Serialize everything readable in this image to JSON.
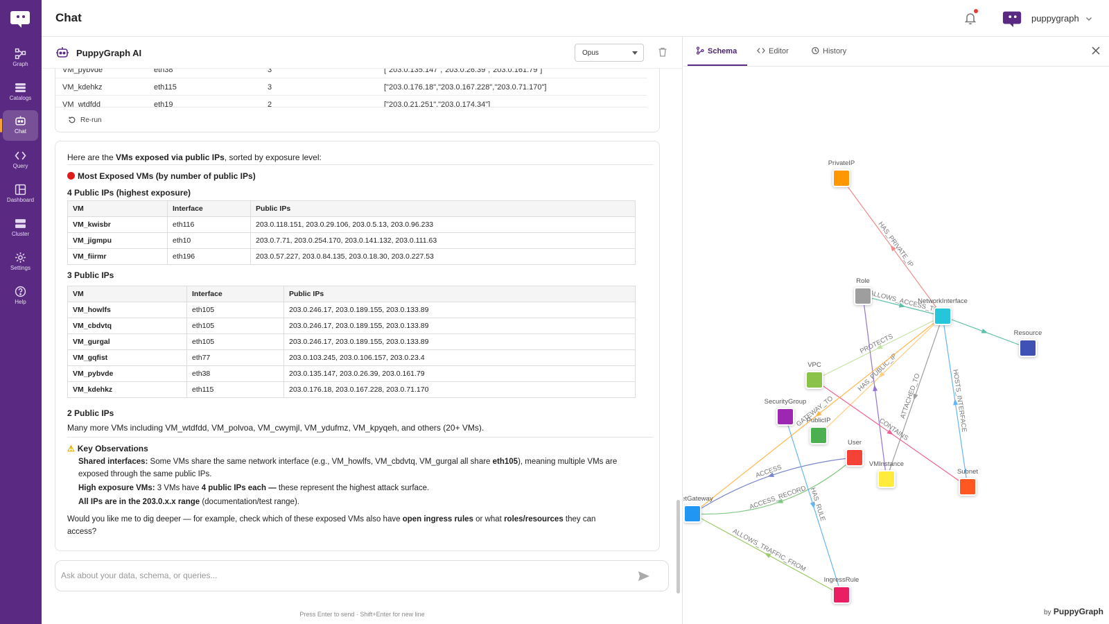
{
  "page_title": "Chat",
  "user": {
    "name": "puppygraph"
  },
  "nav": [
    {
      "label": "Graph",
      "icon": "graph-icon"
    },
    {
      "label": "Catalogs",
      "icon": "catalogs-icon"
    },
    {
      "label": "Chat",
      "icon": "chat-icon"
    },
    {
      "label": "Query",
      "icon": "query-icon"
    },
    {
      "label": "Dashboard",
      "icon": "dashboard-icon"
    },
    {
      "label": "Cluster",
      "icon": "cluster-icon"
    },
    {
      "label": "Settings",
      "icon": "settings-icon"
    },
    {
      "label": "Help",
      "icon": "help-icon"
    }
  ],
  "chat": {
    "title": "PuppyGraph AI",
    "model": "Opus",
    "previous_rows": [
      {
        "vm": "VM_pybvde",
        "iface": "eth38",
        "count": "3",
        "ips": "[\"203.0.135.147\",\"203.0.26.39\",\"203.0.161.79\"]"
      },
      {
        "vm": "VM_kdehkz",
        "iface": "eth115",
        "count": "3",
        "ips": "[\"203.0.176.18\",\"203.0.167.228\",\"203.0.71.170\"]"
      },
      {
        "vm": "VM_wtdfdd",
        "iface": "eth19",
        "count": "2",
        "ips": "[\"203.0.21.251\",\"203.0.174.34\"]"
      }
    ],
    "rerun_label": "Re-run",
    "intro_prefix": "Here are the ",
    "intro_bold": "VMs exposed via public IPs",
    "intro_suffix": ", sorted by exposure level:",
    "most_exposed_heading": "Most Exposed VMs (by number of public IPs)",
    "group4_heading": "4 Public IPs (highest exposure)",
    "table_headers": [
      "VM",
      "Interface",
      "Public IPs"
    ],
    "group4_rows": [
      {
        "vm": "VM_kwisbr",
        "iface": "eth116",
        "ips": "203.0.118.151, 203.0.29.106, 203.0.5.13, 203.0.96.233"
      },
      {
        "vm": "VM_jigmpu",
        "iface": "eth10",
        "ips": "203.0.7.71, 203.0.254.170, 203.0.141.132, 203.0.111.63"
      },
      {
        "vm": "VM_fiirmr",
        "iface": "eth196",
        "ips": "203.0.57.227, 203.0.84.135, 203.0.18.30, 203.0.227.53"
      }
    ],
    "group3_heading": "3 Public IPs",
    "group3_rows": [
      {
        "vm": "VM_howlfs",
        "iface": "eth105",
        "ips": "203.0.246.17, 203.0.189.155, 203.0.133.89"
      },
      {
        "vm": "VM_cbdvtq",
        "iface": "eth105",
        "ips": "203.0.246.17, 203.0.189.155, 203.0.133.89"
      },
      {
        "vm": "VM_gurgal",
        "iface": "eth105",
        "ips": "203.0.246.17, 203.0.189.155, 203.0.133.89"
      },
      {
        "vm": "VM_gqfist",
        "iface": "eth77",
        "ips": "203.0.103.245, 203.0.106.157, 203.0.23.4"
      },
      {
        "vm": "VM_pybvde",
        "iface": "eth38",
        "ips": "203.0.135.147, 203.0.26.39, 203.0.161.79"
      },
      {
        "vm": "VM_kdehkz",
        "iface": "eth115",
        "ips": "203.0.176.18, 203.0.167.228, 203.0.71.170"
      }
    ],
    "group2_heading": "2 Public IPs",
    "group2_text": "Many more VMs including VM_wtdfdd, VM_polvoa, VM_cwymjl, VM_ydufmz, VM_kpyqeh, and others (20+ VMs).",
    "observations_heading": "Key Observations",
    "obs1_bold": "Shared interfaces:",
    "obs1_text_a": " Some VMs share the same network interface (e.g., VM_howlfs, VM_cbdvtq, VM_gurgal all share ",
    "obs1_bold2": "eth105",
    "obs1_text_b": "), meaning multiple VMs are exposed through the same public IPs.",
    "obs2_bold": "High exposure VMs:",
    "obs2_text_a": " 3 VMs have ",
    "obs2_bold2": "4 public IPs each —",
    "obs2_text_b": " these represent the highest attack surface.",
    "obs3_bold": "All IPs are in the 203.0.x.x range",
    "obs3_text": " (documentation/test range).",
    "ask_a": "Would you like me to dig deeper — for example, check which of these exposed VMs also have ",
    "ask_bold1": "open ingress rules",
    "ask_b": " or what ",
    "ask_bold2": "roles/resources",
    "ask_c": " they can access?",
    "input_placeholder": "Ask about your data, schema, or queries...",
    "hint": "Press Enter to send · Shift+Enter for new line"
  },
  "schema": {
    "tabs": [
      "Schema",
      "Editor",
      "History"
    ],
    "brand_by": "by",
    "brand_name": "PuppyGraph",
    "nodes": [
      {
        "id": "PrivateIP",
        "label": "PrivateIP",
        "color": "#ff9800"
      },
      {
        "id": "Role",
        "label": "Role",
        "color": "#9e9e9e"
      },
      {
        "id": "NetworkInterface",
        "label": "NetworkInterface",
        "color": "#26c6da"
      },
      {
        "id": "Resource",
        "label": "Resource",
        "color": "#3f51b5"
      },
      {
        "id": "VPC",
        "label": "VPC",
        "color": "#8bc34a"
      },
      {
        "id": "SecurityGroup",
        "label": "SecurityGroup",
        "color": "#9c27b0"
      },
      {
        "id": "PublicIP",
        "label": "PublicIP",
        "color": "#4caf50"
      },
      {
        "id": "User",
        "label": "User",
        "color": "#f44336"
      },
      {
        "id": "VMInstance",
        "label": "VMInstance",
        "color": "#ffeb3b"
      },
      {
        "id": "Subnet",
        "label": "Subnet",
        "color": "#ff5722"
      },
      {
        "id": "InternetGateway",
        "label": "ernetGateway",
        "color": "#2196f3"
      },
      {
        "id": "IngressRule",
        "label": "IngressRule",
        "color": "#e91e63"
      }
    ],
    "edges": [
      {
        "from": "NetworkInterface",
        "to": "PrivateIP",
        "label": "HAS_PRIVATE_IP",
        "color": "#f28b8b"
      },
      {
        "from": "Role",
        "to": "NetworkInterface",
        "label": "ALLOWS_ACCESS_TO",
        "color": "#5cbfa8"
      },
      {
        "from": "NetworkInterface",
        "to": "Resource",
        "label": "",
        "color": "#5cbfa8"
      },
      {
        "from": "NetworkInterface",
        "to": "VPC",
        "label": "PROTECTS",
        "color": "#c5e1a5"
      },
      {
        "from": "NetworkInterface",
        "to": "PublicIP",
        "label": "HAS_PUBLIC_IP",
        "color": "#ffcc80"
      },
      {
        "from": "VMInstance",
        "to": "Role",
        "label": "",
        "color": "#9575cd"
      },
      {
        "from": "NetworkInterface",
        "to": "VMInstance",
        "label": "ATTACHED_TO",
        "color": "#9e9e9e"
      },
      {
        "from": "Subnet",
        "to": "NetworkInterface",
        "label": "HOSTS_INTERFACE",
        "color": "#64b5f6"
      },
      {
        "from": "VPC",
        "to": "Subnet",
        "label": "CONTAINS",
        "color": "#f06292"
      },
      {
        "from": "NetworkInterface",
        "to": "InternetGateway",
        "label": "GATEWAY_TO",
        "color": "#ffb74d"
      },
      {
        "from": "User",
        "to": "InternetGateway",
        "label": "ACCESS_RECORD",
        "color": "#81c784"
      },
      {
        "from": "User",
        "to": "InternetGateway",
        "label": "ACCESS",
        "color": "#7986cb"
      },
      {
        "from": "SecurityGroup",
        "to": "IngressRule",
        "label": "HAS_RULE",
        "color": "#64b5f6"
      },
      {
        "from": "IngressRule",
        "to": "InternetGateway",
        "label": "ALLOWS_TRAFFIC_FROM",
        "color": "#9ccc65"
      }
    ]
  }
}
